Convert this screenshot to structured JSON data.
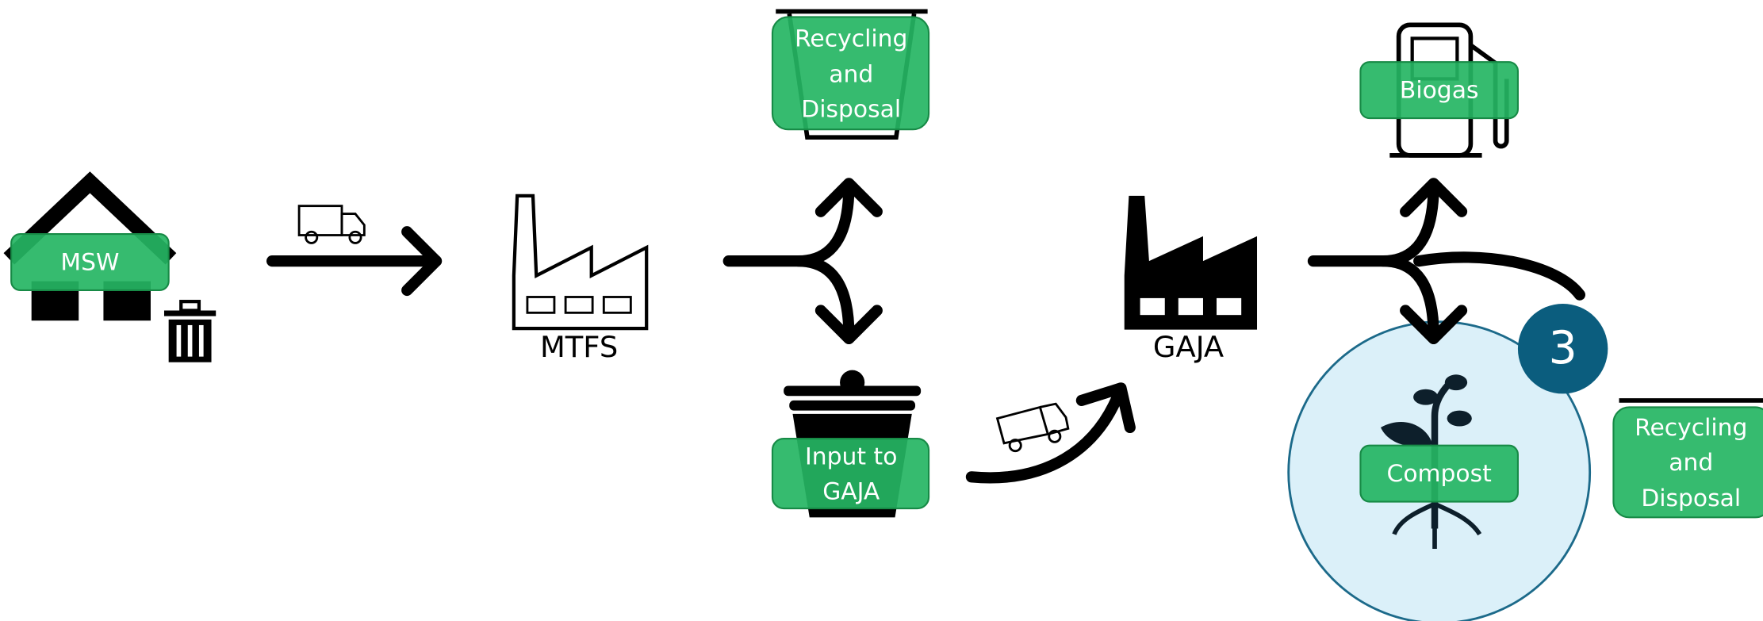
{
  "nodes": [
    {
      "label": "MSW"
    },
    {
      "label": "MTFS"
    },
    {
      "label_lines": [
        "Recycling",
        "and",
        "Disposal"
      ]
    },
    {
      "label_lines": [
        "Input to",
        "GAJA"
      ]
    },
    {
      "label": "GAJA"
    },
    {
      "label": "Biogas"
    },
    {
      "label": "Compost"
    },
    {
      "label_lines": [
        "Recycling",
        "and",
        "Disposal"
      ]
    }
  ],
  "badge": "3"
}
